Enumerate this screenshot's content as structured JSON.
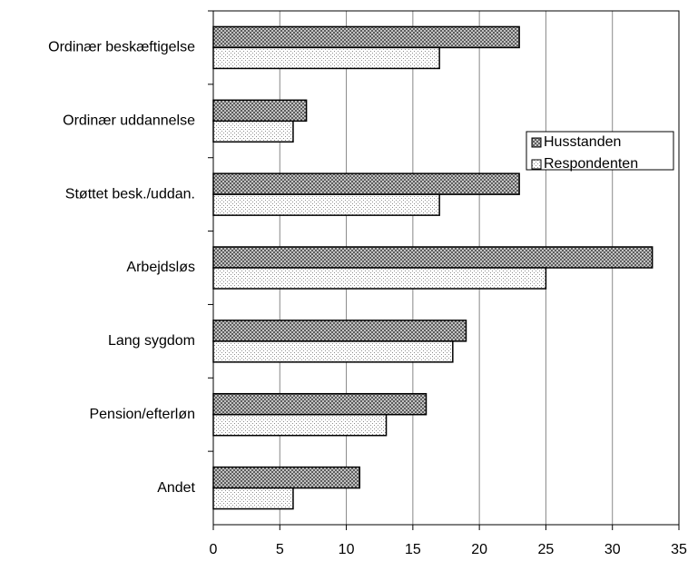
{
  "chart_data": {
    "type": "barh",
    "categories": [
      "Ordinær beskæftigelse",
      "Ordinær uddannelse",
      "Støttet besk./uddan.",
      "Arbejdsløs",
      "Lang sygdom",
      "Pension/efterløn",
      "Andet"
    ],
    "series": [
      {
        "name": "Husstanden",
        "color": "#5a5a5a",
        "values": [
          23,
          7,
          23,
          33,
          19,
          16,
          11
        ]
      },
      {
        "name": "Respondenten",
        "color": "#8c8c8c",
        "values": [
          17,
          6,
          17,
          25,
          18,
          13,
          6
        ]
      }
    ],
    "xlim": [
      0,
      35
    ],
    "xticks": [
      0,
      5,
      10,
      15,
      20,
      25,
      30,
      35
    ],
    "grid": true,
    "legend": "upper right"
  }
}
